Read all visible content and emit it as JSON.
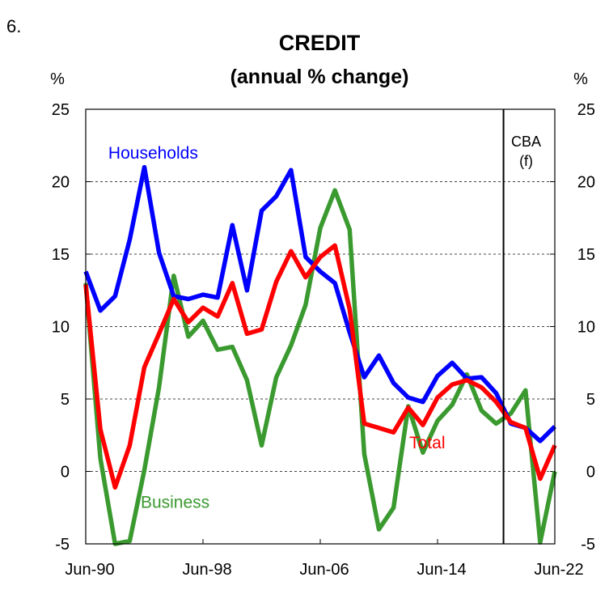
{
  "figure_number": "6.",
  "chart_data": {
    "type": "line",
    "title": "CREDIT",
    "subtitle": "(annual % change)",
    "ylabel_left": "%",
    "ylabel_right": "%",
    "ylim": [
      -5,
      25
    ],
    "yticks": [
      -5,
      0,
      5,
      10,
      15,
      20,
      25
    ],
    "xlim": [
      1990.5,
      2022.5
    ],
    "xticks": [
      {
        "x": 1990.5,
        "label": "Jun-90"
      },
      {
        "x": 1998.5,
        "label": "Jun-98"
      },
      {
        "x": 2006.5,
        "label": "Jun-06"
      },
      {
        "x": 2014.5,
        "label": "Jun-14"
      },
      {
        "x": 2022.5,
        "label": "Jun-22"
      }
    ],
    "grid": "horizontal-dashed",
    "forecast_start": 2019.0,
    "forecast_label_line1": "CBA",
    "forecast_label_line2": "(f)",
    "x": [
      1990.5,
      1991.5,
      1992.5,
      1993.5,
      1994.5,
      1995.5,
      1996.5,
      1997.5,
      1998.5,
      1999.5,
      2000.5,
      2001.5,
      2002.5,
      2003.5,
      2004.5,
      2005.5,
      2006.5,
      2007.5,
      2008.5,
      2009.5,
      2010.5,
      2011.5,
      2012.5,
      2013.5,
      2014.5,
      2015.5,
      2016.5,
      2017.5,
      2018.5,
      2019.5,
      2020.5,
      2021.5,
      2022.5
    ],
    "series": [
      {
        "name": "Households",
        "color": "#0000ff",
        "values": [
          13.8,
          11.1,
          12.1,
          16.0,
          21.0,
          15.1,
          12.1,
          11.9,
          12.2,
          12.0,
          17.0,
          12.5,
          18.0,
          19.0,
          20.8,
          14.8,
          13.8,
          13.0,
          9.6,
          6.5,
          8.0,
          6.1,
          5.1,
          4.8,
          6.6,
          7.5,
          6.4,
          6.5,
          5.4,
          3.3,
          3.0,
          2.1,
          3.1
        ]
      },
      {
        "name": "Total",
        "color": "#ff0000",
        "values": [
          12.9,
          2.9,
          -1.1,
          1.8,
          7.2,
          9.5,
          11.9,
          10.3,
          11.3,
          10.7,
          13.0,
          9.5,
          9.8,
          13.1,
          15.2,
          13.4,
          14.8,
          15.6,
          11.2,
          3.3,
          3.0,
          2.7,
          4.4,
          3.2,
          5.1,
          6.0,
          6.3,
          5.8,
          4.8,
          3.4,
          3.0,
          -0.5,
          1.8
        ]
      },
      {
        "name": "Business",
        "color": "#3a9a2f",
        "values": [
          13.0,
          0.9,
          -5.0,
          -4.8,
          0.1,
          5.8,
          13.5,
          9.3,
          10.4,
          8.4,
          8.6,
          6.3,
          1.8,
          6.5,
          8.7,
          11.5,
          16.8,
          19.4,
          16.7,
          1.2,
          -4.0,
          -2.5,
          4.5,
          1.3,
          3.5,
          4.6,
          6.7,
          4.2,
          3.3,
          4.0,
          5.6,
          -4.9,
          0.0
        ]
      }
    ],
    "series_labels": [
      {
        "name": "Households",
        "color": "#0000ff",
        "x": 1995.1,
        "y": 21.6
      },
      {
        "name": "Total",
        "color": "#ff0000",
        "x": 2013.8,
        "y": 1.6
      },
      {
        "name": "Business",
        "color": "#3a9a2f",
        "x": 1996.6,
        "y": -2.5
      }
    ]
  }
}
